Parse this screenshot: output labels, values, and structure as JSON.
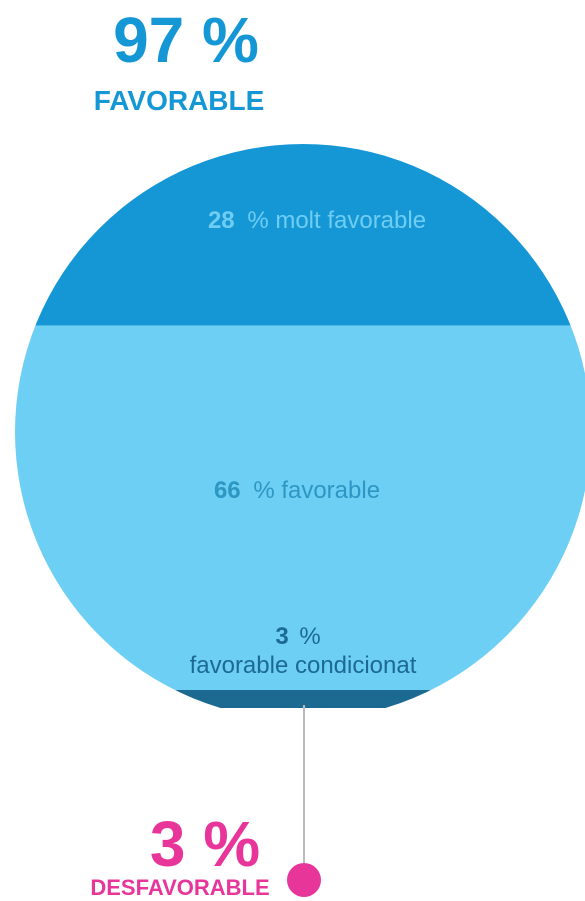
{
  "chart_data": {
    "type": "pie",
    "headline_favorable": {
      "value": "97 %",
      "label": "FAVORABLE"
    },
    "headline_unfavorable": {
      "value": "3 %",
      "label": "DESFAVORABLE"
    },
    "segments": [
      {
        "value": 28,
        "value_text": "28",
        "label": "% molt favorable",
        "color": "#1597d6",
        "label_color": "#6fcdf2"
      },
      {
        "value": 66,
        "value_text": "66",
        "label": "% favorable",
        "color": "#6ecff5",
        "label_color": "#2c97c2"
      },
      {
        "value": 3,
        "value_text": "3",
        "label_line1": "%",
        "label_line2": "favorable condicionat",
        "color": "#1c6a92",
        "label_color": "#1c6a92"
      },
      {
        "value": 3,
        "label": "desfavorable",
        "color": "#e8359a"
      }
    ],
    "colors": {
      "favorable_text": "#1597d6",
      "unfavorable_text": "#e8359a",
      "connector": "#bbbbbb"
    }
  }
}
